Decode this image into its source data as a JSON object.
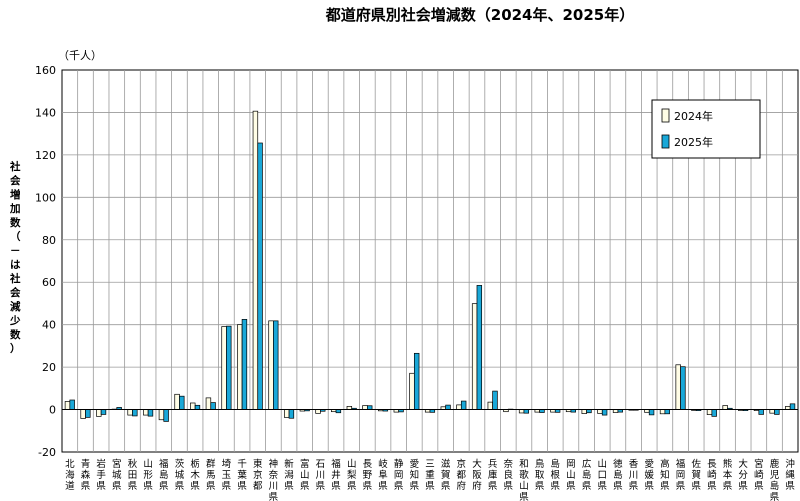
{
  "chart_data": {
    "type": "bar",
    "title": "都道府県別社会増減数（2024年、2025年）",
    "unit": "（千人）",
    "ylabel": "社会増加数（－は社会減少数）",
    "ylim": [
      -20,
      160
    ],
    "yticks": [
      -20,
      0,
      20,
      40,
      60,
      80,
      100,
      120,
      140,
      160
    ],
    "grid": true,
    "legend_position": "top-right",
    "colors": {
      "2024年": "#FFFDE6",
      "2025年": "#1AA8D8"
    },
    "categories": [
      "北海道",
      "青森県",
      "岩手県",
      "宮城県",
      "秋田県",
      "山形県",
      "福島県",
      "茨城県",
      "栃木県",
      "群馬県",
      "埼玉県",
      "千葉県",
      "東京都",
      "神奈川県",
      "新潟県",
      "富山県",
      "石川県",
      "福井県",
      "山梨県",
      "長野県",
      "岐阜県",
      "静岡県",
      "愛知県",
      "三重県",
      "滋賀県",
      "京都府",
      "大阪府",
      "兵庫県",
      "奈良県",
      "和歌山県",
      "鳥取県",
      "島根県",
      "岡山県",
      "広島県",
      "山口県",
      "徳島県",
      "香川県",
      "愛媛県",
      "高知県",
      "福岡県",
      "佐賀県",
      "長崎県",
      "熊本県",
      "大分県",
      "宮崎県",
      "鹿児島県",
      "沖縄県"
    ],
    "category_labels": [
      "北\n海\n道",
      "青\n森\n県",
      "岩\n手\n県",
      "宮\n城\n県",
      "秋\n田\n県",
      "山\n形\n県",
      "福\n島\n県",
      "茨\n城\n県",
      "栃\n木\n県",
      "群\n馬\n県",
      "埼\n玉\n県",
      "千\n葉\n県",
      "東\n京\n都",
      "神\n奈\n川\n県",
      "新\n潟\n県",
      "富\n山\n県",
      "石\n川\n県",
      "福\n井\n県",
      "山\n梨\n県",
      "長\n野\n県",
      "岐\n阜\n県",
      "静\n岡\n県",
      "愛\n知\n県",
      "三\n重\n県",
      "滋\n賀\n県",
      "京\n都\n府",
      "大\n阪\n府",
      "兵\n庫\n県",
      "奈\n良\n県",
      "和\n歌\n山\n県",
      "鳥\n取\n県",
      "島\n根\n県",
      "岡\n山\n県",
      "広\n島\n県",
      "山\n口\n県",
      "徳\n島\n県",
      "香\n川\n県",
      "愛\n媛\n県",
      "高\n知\n県",
      "福\n岡\n県",
      "佐\n賀\n県",
      "長\n崎\n県",
      "熊\n本\n県",
      "大\n分\n県",
      "宮\n崎\n県",
      "鹿\n児\n島\n県",
      "沖\n縄\n県"
    ],
    "series": [
      {
        "name": "2024年",
        "values": [
          3.8,
          -4.2,
          -3.2,
          0.2,
          -2.6,
          -2.6,
          -4.8,
          7.2,
          3.1,
          5.5,
          39.1,
          40.0,
          140.6,
          41.8,
          -3.7,
          -0.7,
          -1.8,
          -1.0,
          1.5,
          1.9,
          -0.6,
          -1.2,
          17.1,
          -1.2,
          1.3,
          2.2,
          49.9,
          3.5,
          -1.0,
          -1.6,
          -1.2,
          -1.2,
          -1.0,
          -1.9,
          -1.8,
          -1.4,
          -0.3,
          -1.3,
          -2.0,
          21.1,
          -0.4,
          -2.4,
          1.9,
          -0.5,
          -0.5,
          -1.7,
          1.5
        ]
      },
      {
        "name": "2025年",
        "values": [
          4.5,
          -3.7,
          -2.3,
          1.0,
          -3.0,
          -3.1,
          -5.6,
          6.3,
          2.0,
          3.3,
          39.3,
          42.5,
          125.6,
          41.8,
          -4.1,
          -0.6,
          -0.8,
          -1.5,
          0.6,
          1.8,
          -0.7,
          -1.1,
          26.5,
          -1.3,
          2.1,
          4.0,
          58.5,
          8.7,
          0.2,
          -1.7,
          -1.4,
          -1.3,
          -1.2,
          -1.5,
          -2.6,
          -1.2,
          -0.3,
          -2.5,
          -2.0,
          20.2,
          -0.5,
          -3.2,
          0.6,
          -0.5,
          -2.3,
          -2.3,
          2.7
        ]
      }
    ]
  }
}
